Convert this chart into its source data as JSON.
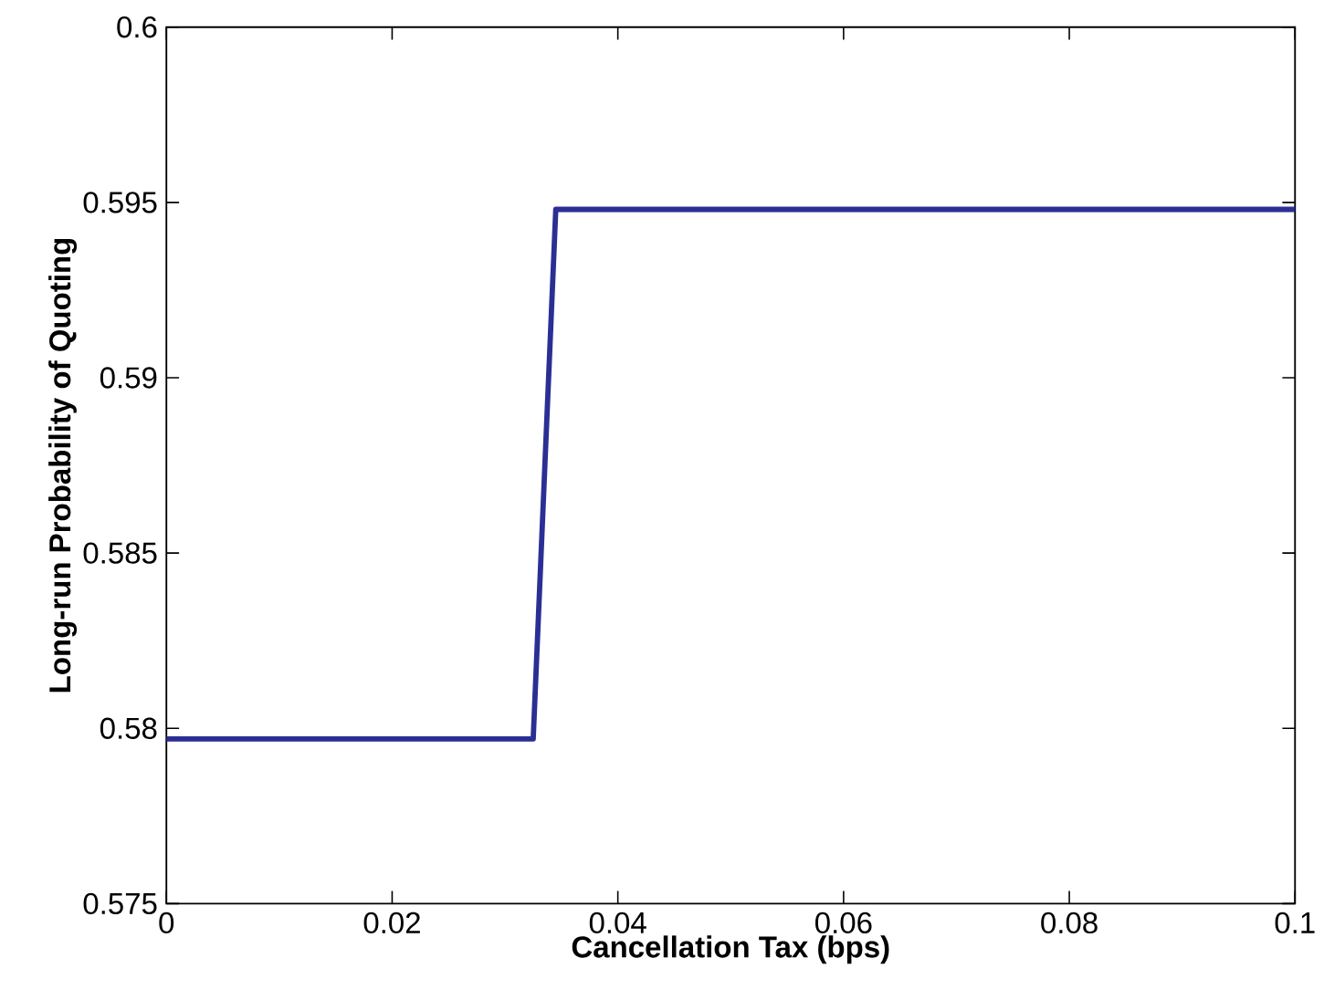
{
  "chart_data": {
    "type": "line",
    "xlabel": "Cancellation Tax (bps)",
    "ylabel": "Long-run Probability of Quoting",
    "x": [
      0,
      0.0325,
      0.0345,
      0.1
    ],
    "series": [
      {
        "color": "#2b2f94",
        "values": [
          0.5797,
          0.5797,
          0.5948,
          0.5948
        ]
      }
    ],
    "xlim": [
      0,
      0.1
    ],
    "ylim": [
      0.575,
      0.6
    ],
    "xticks": [
      0,
      0.02,
      0.04,
      0.06,
      0.08,
      0.1
    ],
    "yticks": [
      0.575,
      0.58,
      0.585,
      0.59,
      0.595,
      0.6
    ],
    "grid": false,
    "marker": "none",
    "line_style": "solid"
  }
}
